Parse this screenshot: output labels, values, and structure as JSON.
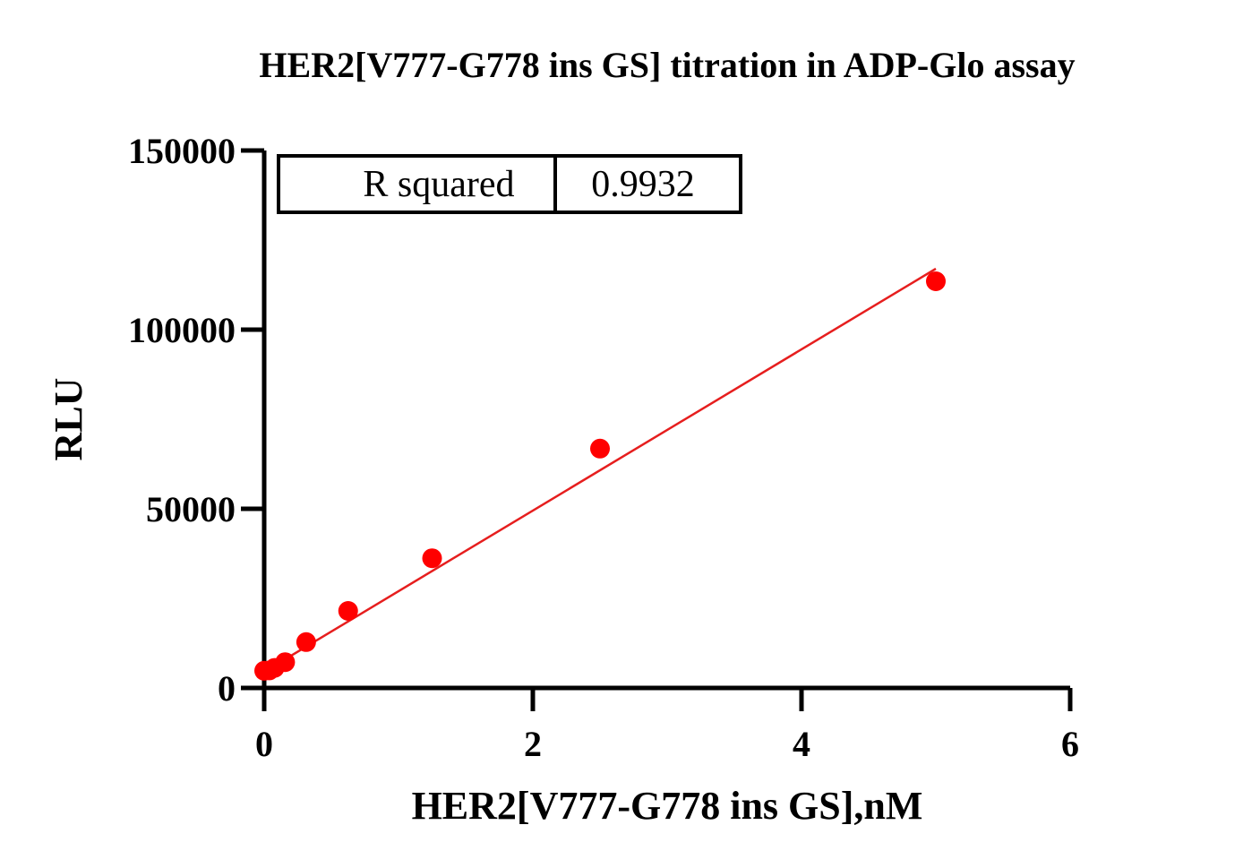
{
  "chart_data": {
    "type": "scatter",
    "title": "HER2[V777-G778 ins GS] titration in  ADP-Glo assay",
    "xlabel": "HER2[V777-G778 ins GS],nM",
    "ylabel": "RLU",
    "xlim": [
      0,
      6
    ],
    "ylim": [
      0,
      150000
    ],
    "x_ticks": [
      0,
      2,
      4,
      6
    ],
    "x_tick_labels": [
      "0",
      "2",
      "4",
      "6"
    ],
    "y_ticks": [
      0,
      50000,
      100000,
      150000
    ],
    "y_tick_labels": [
      "0",
      "50000",
      "100000",
      "150000"
    ],
    "grid": false,
    "series": [
      {
        "color": "#ff0000",
        "x": [
          0,
          0.039,
          0.078,
          0.156,
          0.3125,
          0.625,
          1.25,
          2.5,
          5
        ],
        "y": [
          4800,
          4900,
          5600,
          7200,
          12800,
          21500,
          36200,
          66800,
          113500
        ]
      }
    ],
    "fit_line": {
      "color": "#e61e1e",
      "x": [
        0,
        5
      ],
      "y": [
        4500,
        117000
      ]
    },
    "stats_table": {
      "label": "R squared",
      "value": "0.9932"
    }
  }
}
